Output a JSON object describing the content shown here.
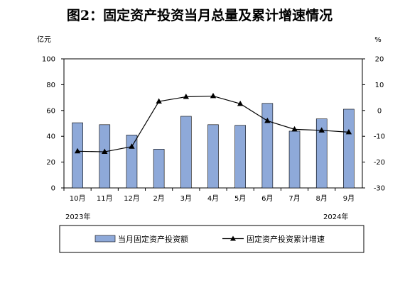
{
  "chart_data": {
    "type": "bar+line",
    "title": "图2：固定资产投资当月总量及累计增速情况",
    "left_unit": "亿元",
    "right_unit": "%",
    "categories": [
      "10月",
      "11月",
      "12月",
      "2月",
      "3月",
      "4月",
      "5月",
      "6月",
      "7月",
      "8月",
      "9月"
    ],
    "year_labels": [
      "2023年",
      "2024年"
    ],
    "bars": {
      "name": "当月固定资产投资额",
      "axis": "left",
      "color": "#8ea9d9",
      "values": [
        50.5,
        49.0,
        41.0,
        30.0,
        55.5,
        49.0,
        48.5,
        65.5,
        44.0,
        53.5,
        61.0
      ]
    },
    "line": {
      "name": "固定资产投资累计增速",
      "axis": "right",
      "color": "#000000",
      "marker": "triangle",
      "values": [
        -15.8,
        -16.0,
        -14.0,
        3.5,
        5.3,
        5.6,
        2.6,
        -4.0,
        -7.3,
        -7.7,
        -8.4
      ]
    },
    "left_axis": {
      "min": 0,
      "max": 100,
      "ticks": [
        0,
        20,
        40,
        60,
        80,
        100
      ]
    },
    "right_axis": {
      "min": -30,
      "max": 20,
      "ticks": [
        -30,
        -20,
        -10,
        0,
        10,
        20
      ]
    },
    "legend_position": "bottom",
    "grid": false
  }
}
